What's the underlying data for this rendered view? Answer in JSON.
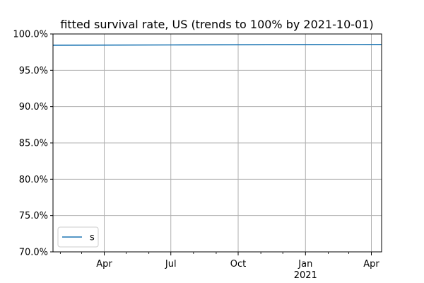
{
  "chart_data": {
    "type": "line",
    "title": "fitted survival rate, US (trends to 100% by 2021-10-01)",
    "xlabel": "",
    "ylabel": "",
    "xlim": [
      "2020-01-22",
      "2021-04-15"
    ],
    "ylim": [
      0.7,
      1.0
    ],
    "grid": true,
    "legend_position": "lower-left",
    "y_ticks": [
      {
        "value": 0.7,
        "label": "70.0%"
      },
      {
        "value": 0.75,
        "label": "75.0%"
      },
      {
        "value": 0.8,
        "label": "80.0%"
      },
      {
        "value": 0.85,
        "label": "85.0%"
      },
      {
        "value": 0.9,
        "label": "90.0%"
      },
      {
        "value": 0.95,
        "label": "95.0%"
      },
      {
        "value": 1.0,
        "label": "100.0%"
      }
    ],
    "x_major_ticks": [
      {
        "date": "2020-04-01",
        "label": "Apr",
        "sublabel": ""
      },
      {
        "date": "2020-07-01",
        "label": "Jul",
        "sublabel": ""
      },
      {
        "date": "2020-10-01",
        "label": "Oct",
        "sublabel": ""
      },
      {
        "date": "2021-01-01",
        "label": "Jan",
        "sublabel": "2021"
      },
      {
        "date": "2021-04-01",
        "label": "Apr",
        "sublabel": ""
      }
    ],
    "x_minor_ticks": [
      "2020-02-01",
      "2020-03-01",
      "2020-05-01",
      "2020-06-01",
      "2020-08-01",
      "2020-09-01",
      "2020-11-01",
      "2020-12-01",
      "2021-02-01",
      "2021-03-01"
    ],
    "series": [
      {
        "name": "s",
        "color": "#1f77b4",
        "x": [
          "2020-01-22",
          "2020-07-01",
          "2021-01-01",
          "2021-04-15"
        ],
        "y": [
          0.9845,
          0.9849,
          0.9853,
          0.9856
        ]
      }
    ]
  }
}
